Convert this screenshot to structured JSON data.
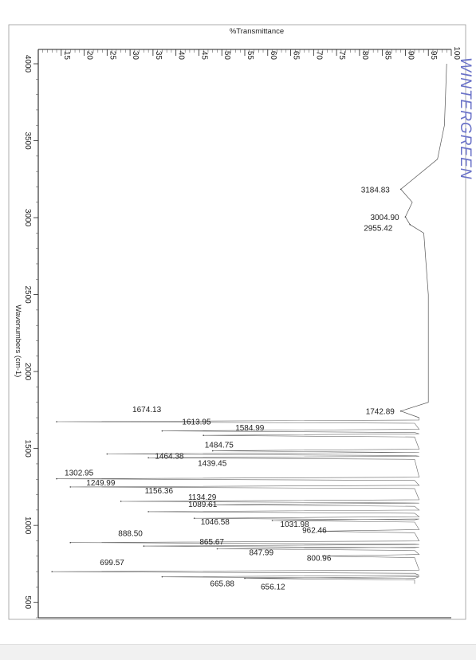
{
  "chart_data": {
    "type": "line",
    "xlabel": "Wavenumbers (cm-1)",
    "ylabel": "%Transmittance",
    "xlim": [
      4000,
      400
    ],
    "ylim": [
      10,
      100
    ],
    "xticks": [
      "4000",
      "3500",
      "3000",
      "2500",
      "2000",
      "1500",
      "1000",
      "500"
    ],
    "yticks": [
      "15",
      "20",
      "25",
      "30",
      "35",
      "40",
      "45",
      "50",
      "55",
      "60",
      "65",
      "70",
      "75",
      "80",
      "85",
      "90",
      "95",
      "100"
    ],
    "handwritten_label": "WINTERGREEN",
    "peaks": [
      {
        "x": 3184.83,
        "y": 89,
        "label": "3184.83"
      },
      {
        "x": 3004.9,
        "y": 90,
        "label": "3004.90"
      },
      {
        "x": 2955.42,
        "y": 91,
        "label": "2955.42"
      },
      {
        "x": 1742.89,
        "y": 89,
        "label": "1742.89"
      },
      {
        "x": 1674.13,
        "y": 14,
        "label": "1674.13"
      },
      {
        "x": 1613.95,
        "y": 37,
        "label": "1613.95"
      },
      {
        "x": 1584.99,
        "y": 46,
        "label": "1584.99"
      },
      {
        "x": 1484.75,
        "y": 48,
        "label": "1484.75"
      },
      {
        "x": 1464.38,
        "y": 25,
        "label": "1464.38"
      },
      {
        "x": 1439.45,
        "y": 34,
        "label": "1439.45"
      },
      {
        "x": 1302.95,
        "y": 14,
        "label": "1302.95"
      },
      {
        "x": 1249.99,
        "y": 17,
        "label": "1249.99"
      },
      {
        "x": 1156.36,
        "y": 28,
        "label": "1156.36"
      },
      {
        "x": 1134.29,
        "y": 47,
        "label": "1134.29"
      },
      {
        "x": 1089.61,
        "y": 34,
        "label": "1089.61"
      },
      {
        "x": 1046.58,
        "y": 44,
        "label": "1046.58"
      },
      {
        "x": 1031.98,
        "y": 61,
        "label": "1031.98"
      },
      {
        "x": 962.46,
        "y": 71,
        "label": "962.46"
      },
      {
        "x": 888.5,
        "y": 17,
        "label": "888.50"
      },
      {
        "x": 865.67,
        "y": 33,
        "label": "865.67"
      },
      {
        "x": 847.99,
        "y": 49,
        "label": "847.99"
      },
      {
        "x": 800.96,
        "y": 72,
        "label": "800.96"
      },
      {
        "x": 699.57,
        "y": 13,
        "label": "699.57"
      },
      {
        "x": 665.88,
        "y": 37,
        "label": "665.88"
      },
      {
        "x": 656.12,
        "y": 55,
        "label": "656.12"
      }
    ],
    "baseline": [
      [
        4000,
        99
      ],
      [
        3600,
        98.5
      ],
      [
        3380,
        97
      ],
      [
        3184.83,
        89
      ],
      [
        3100,
        91.5
      ],
      [
        3004.9,
        90
      ],
      [
        2955.42,
        91
      ],
      [
        2900,
        94
      ],
      [
        2500,
        95
      ],
      [
        2100,
        95
      ],
      [
        1800,
        95
      ],
      [
        1742.89,
        89
      ],
      [
        1700,
        93
      ]
    ]
  }
}
